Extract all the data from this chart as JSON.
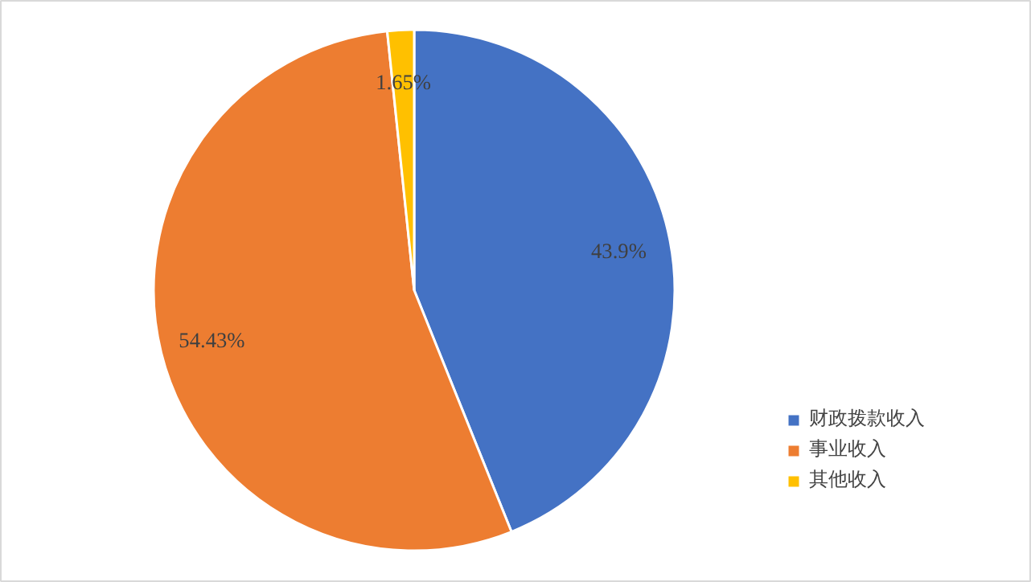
{
  "chart_data": {
    "type": "pie",
    "categories": [
      "财政拨款收入",
      "事业收入",
      "其他收入"
    ],
    "values": [
      43.9,
      54.43,
      1.65
    ],
    "colors": [
      "#4472c4",
      "#ed7d31",
      "#ffc000"
    ],
    "value_labels": [
      "43.9%",
      "54.43%",
      "1.65%"
    ],
    "legend": "right"
  }
}
